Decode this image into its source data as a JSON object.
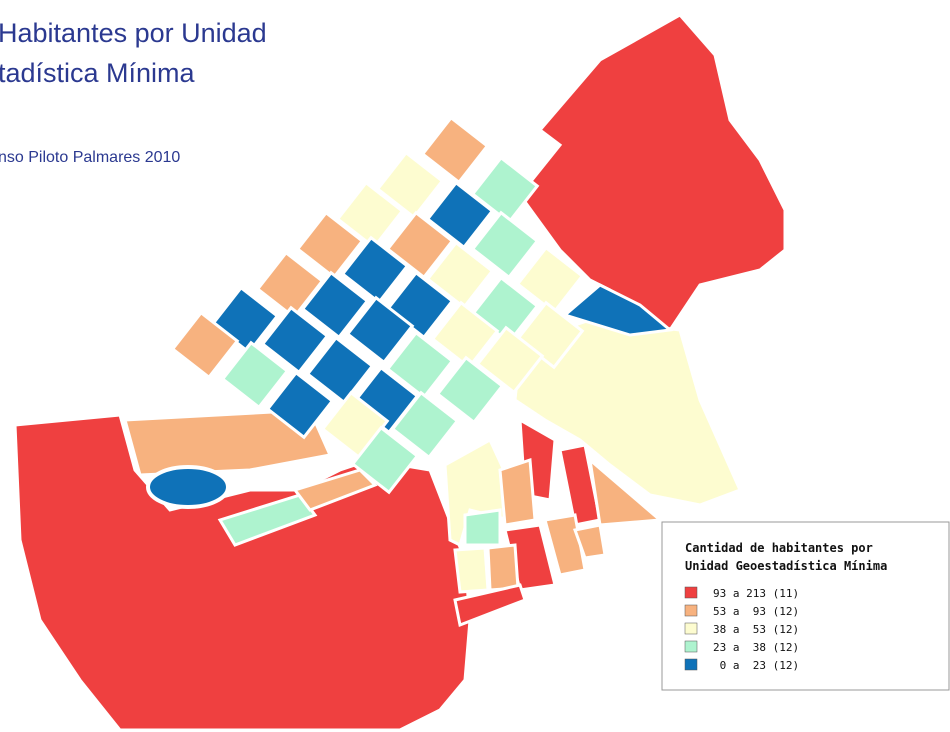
{
  "header": {
    "title_lines": [
      "Habitantes por Unidad",
      "tadística Mínima"
    ],
    "subtitle": "nso Piloto Palmares 2010"
  },
  "legend": {
    "title_lines": [
      "Cantidad de habitantes por",
      "Unidad Geoestadística Mínima"
    ],
    "items": [
      {
        "label": "93 a 213 (11)",
        "color": "#ef4040"
      },
      {
        "label": "53 a  93 (12)",
        "color": "#f7b27f"
      },
      {
        "label": "38 a  53 (12)",
        "color": "#fdfcd0"
      },
      {
        "label": "23 a  38 (12)",
        "color": "#aef3cf"
      },
      {
        "label": " 0 a  23 (12)",
        "color": "#0f72b8"
      }
    ]
  }
}
